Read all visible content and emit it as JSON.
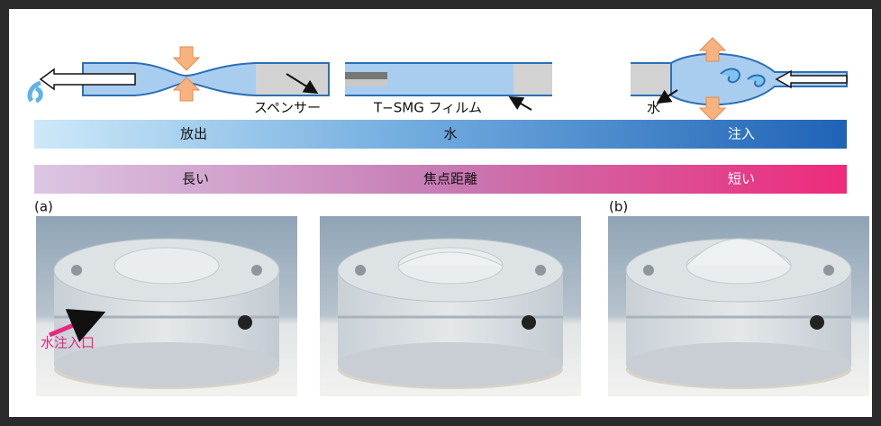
{
  "diagram": {
    "labels": {
      "spacer": "スペンサー",
      "film": "T−SMG フィルム",
      "water": "水"
    },
    "water_bar": {
      "left": "放出",
      "center": "水",
      "right": "注入"
    },
    "focus_bar": {
      "left": "長い",
      "center": "焦点距離",
      "right": "短い"
    },
    "photos": {
      "a": "(a)",
      "b": "(b)",
      "inlet": "水注入口"
    }
  }
}
